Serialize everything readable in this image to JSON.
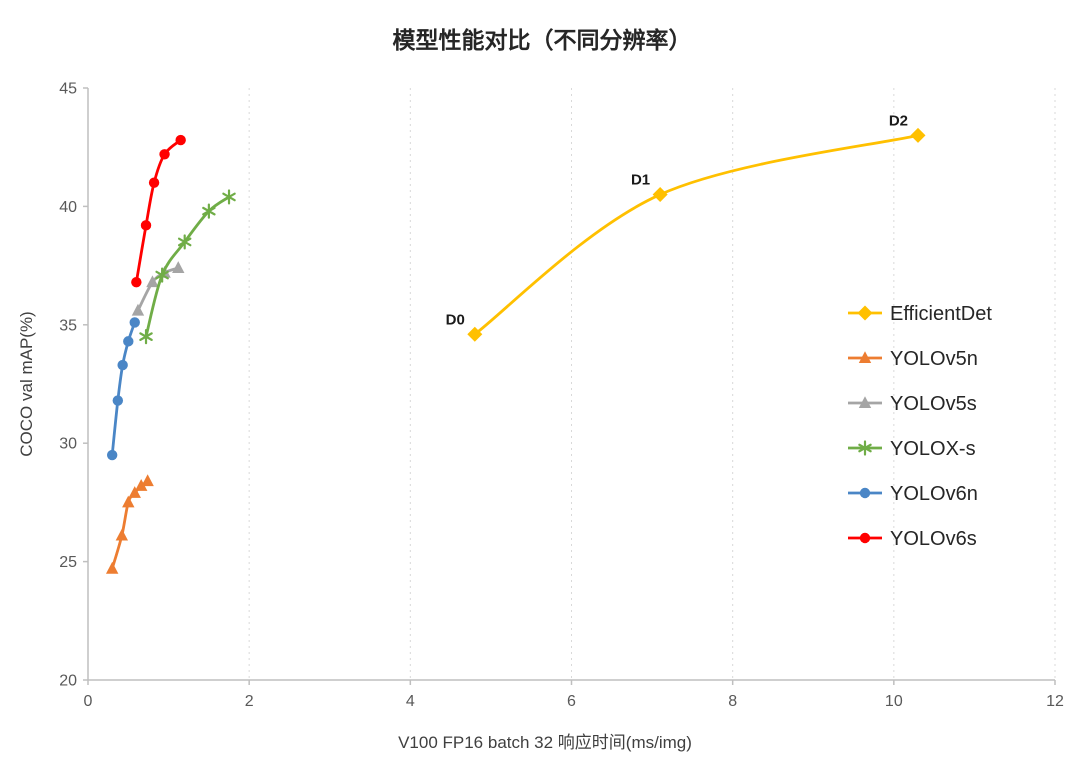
{
  "title": "模型性能对比（不同分辨率）",
  "chart_data": {
    "type": "line",
    "title": "模型性能对比（不同分辨率）",
    "xlabel": "V100 FP16 batch 32 响应时间(ms/img)",
    "ylabel": "COCO val mAP(%)",
    "xlim": [
      0,
      12
    ],
    "ylim": [
      20,
      45
    ],
    "x_ticks": [
      0,
      2,
      4,
      6,
      8,
      10,
      12
    ],
    "y_ticks": [
      20,
      25,
      30,
      35,
      40,
      45
    ],
    "grid": "vertical-dashed",
    "legend_position": "right-middle",
    "colors": {
      "axis": "#BFBFBF",
      "gridline": "#D9D9D9",
      "tick_label": "#595959",
      "title": "#262626",
      "axis_label": "#404040",
      "annotation": "#1a1a1a",
      "legend_text": "#262626"
    },
    "series": [
      {
        "name": "EfficientDet",
        "color": "#FFC000",
        "marker": "diamond",
        "points": [
          [
            4.8,
            34.6
          ],
          [
            7.1,
            40.5
          ],
          [
            10.3,
            43.0
          ]
        ],
        "point_labels": [
          "D0",
          "D1",
          "D2"
        ]
      },
      {
        "name": "YOLOv5n",
        "color": "#ED7D31",
        "marker": "triangle",
        "points": [
          [
            0.3,
            24.7
          ],
          [
            0.42,
            26.1
          ],
          [
            0.5,
            27.5
          ],
          [
            0.58,
            27.9
          ],
          [
            0.66,
            28.2
          ],
          [
            0.74,
            28.4
          ]
        ]
      },
      {
        "name": "YOLOv5s",
        "color": "#A5A5A5",
        "marker": "triangle",
        "points": [
          [
            0.62,
            35.6
          ],
          [
            0.8,
            36.8
          ],
          [
            0.95,
            37.2
          ],
          [
            1.12,
            37.4
          ]
        ]
      },
      {
        "name": "YOLOX-s",
        "color": "#70AD47",
        "marker": "star",
        "points": [
          [
            0.72,
            34.5
          ],
          [
            0.92,
            37.1
          ],
          [
            1.2,
            38.5
          ],
          [
            1.5,
            39.8
          ],
          [
            1.75,
            40.4
          ]
        ]
      },
      {
        "name": "YOLOv6n",
        "color": "#4A86C6",
        "marker": "circle",
        "points": [
          [
            0.3,
            29.5
          ],
          [
            0.37,
            31.8
          ],
          [
            0.43,
            33.3
          ],
          [
            0.5,
            34.3
          ],
          [
            0.58,
            35.1
          ]
        ]
      },
      {
        "name": "YOLOv6s",
        "color": "#FF0000",
        "marker": "circle",
        "points": [
          [
            0.6,
            36.8
          ],
          [
            0.72,
            39.2
          ],
          [
            0.82,
            41.0
          ],
          [
            0.95,
            42.2
          ],
          [
            1.15,
            42.8
          ]
        ]
      }
    ]
  }
}
